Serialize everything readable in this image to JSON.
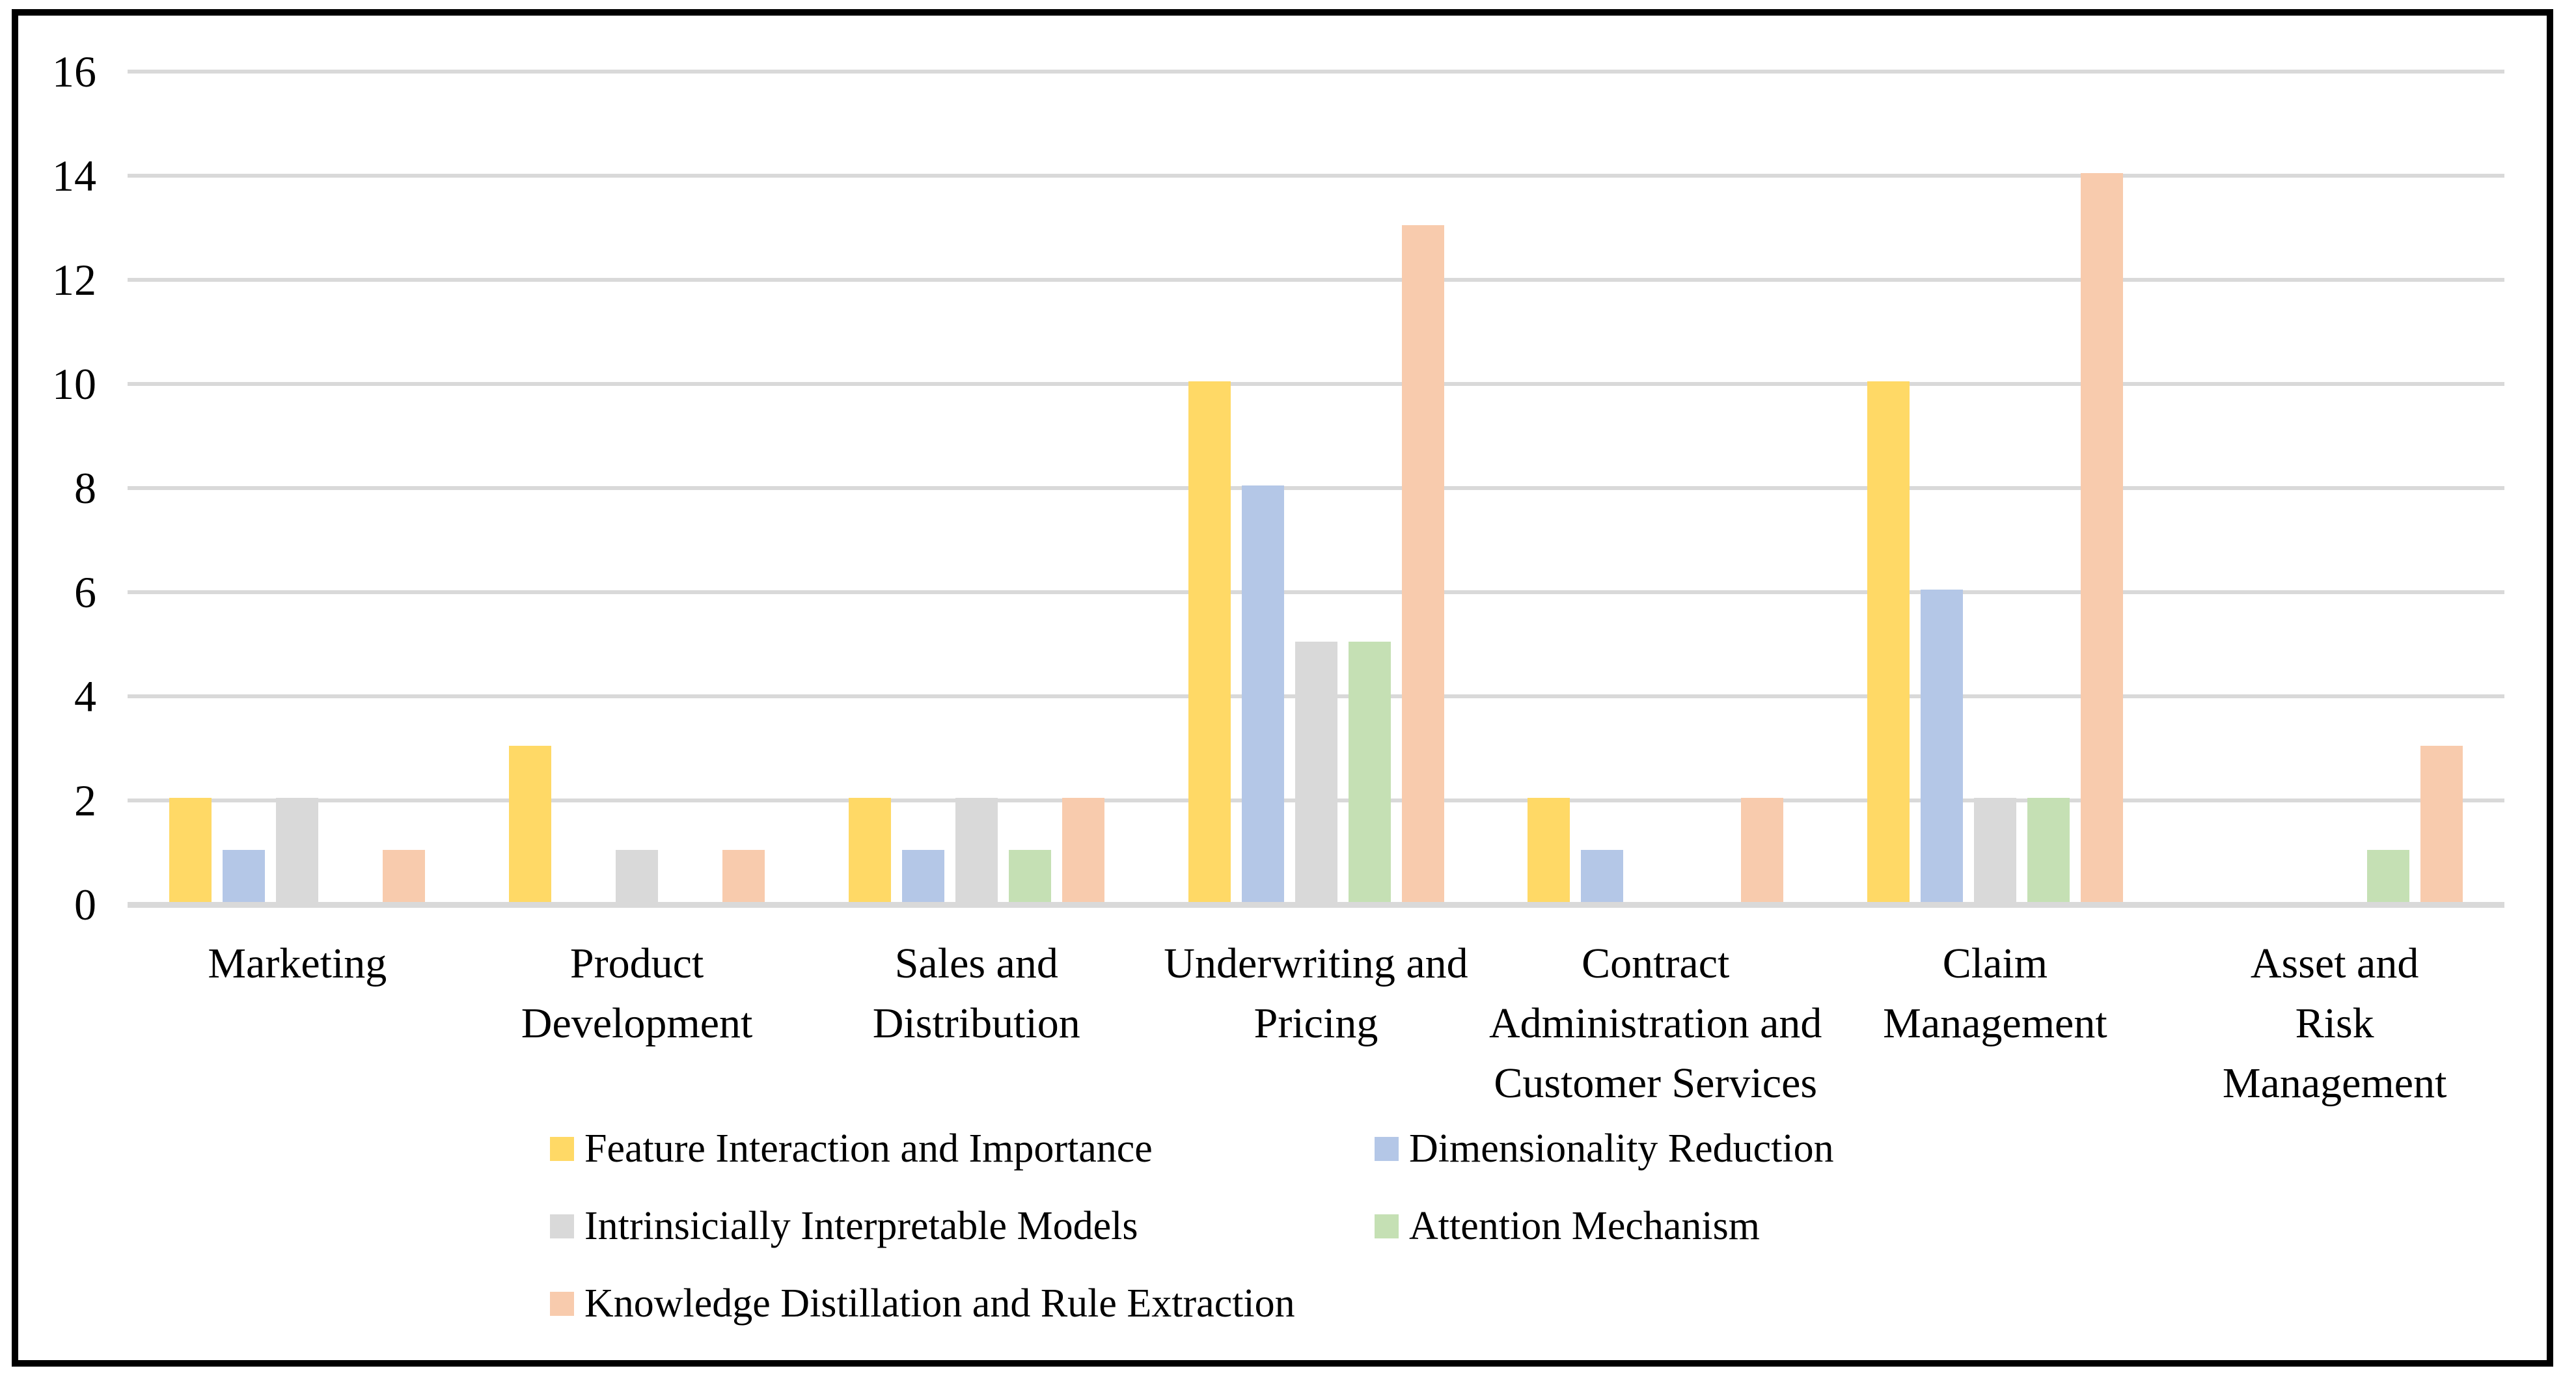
{
  "figure": {
    "background_color": "#FFFFFF",
    "border_color": "#000000",
    "gridline_color": "#D9D9D9",
    "axis_text_color": "#000000"
  },
  "chart_data": {
    "type": "bar",
    "title": "",
    "xlabel": "",
    "ylabel": "",
    "categories": [
      "Marketing",
      "Product\nDevelopment",
      "Sales and\nDistribution",
      "Underwriting and\nPricing",
      "Contract\nAdministration and\nCustomer Services",
      "Claim\nManagement",
      "Asset and Risk\nManagement"
    ],
    "series": [
      {
        "name": "Feature Interaction and Importance",
        "color": "#FFD966",
        "values": [
          2,
          3,
          2,
          10,
          2,
          10,
          0
        ]
      },
      {
        "name": "Dimensionality Reduction",
        "color": "#B4C7E7",
        "values": [
          1,
          0,
          1,
          8,
          1,
          6,
          0
        ]
      },
      {
        "name": "Intrinsicially Interpretable Models",
        "color": "#D9D9D9",
        "values": [
          2,
          1,
          2,
          5,
          0,
          2,
          0
        ]
      },
      {
        "name": "Attention Mechanism",
        "color": "#C5E0B4",
        "values": [
          0,
          0,
          1,
          5,
          0,
          2,
          1
        ]
      },
      {
        "name": "Knowledge Distillation and Rule Extraction",
        "color": "#F8CBAD",
        "values": [
          1,
          1,
          2,
          13,
          2,
          14,
          3
        ]
      }
    ],
    "ylim": [
      0,
      16
    ],
    "yticks": [
      16,
      14,
      12,
      10,
      8,
      6,
      4,
      2,
      0
    ],
    "grid": "horizontal gridlines on, color #D9D9D9",
    "legend_position": "bottom, two columns plus single last row",
    "legend_rows": [
      [
        "Feature Interaction and Importance",
        "Dimensionality Reduction"
      ],
      [
        "Intrinsicially Interpretable Models",
        "Attention Mechanism"
      ],
      [
        "Knowledge Distillation and Rule Extraction"
      ]
    ]
  }
}
